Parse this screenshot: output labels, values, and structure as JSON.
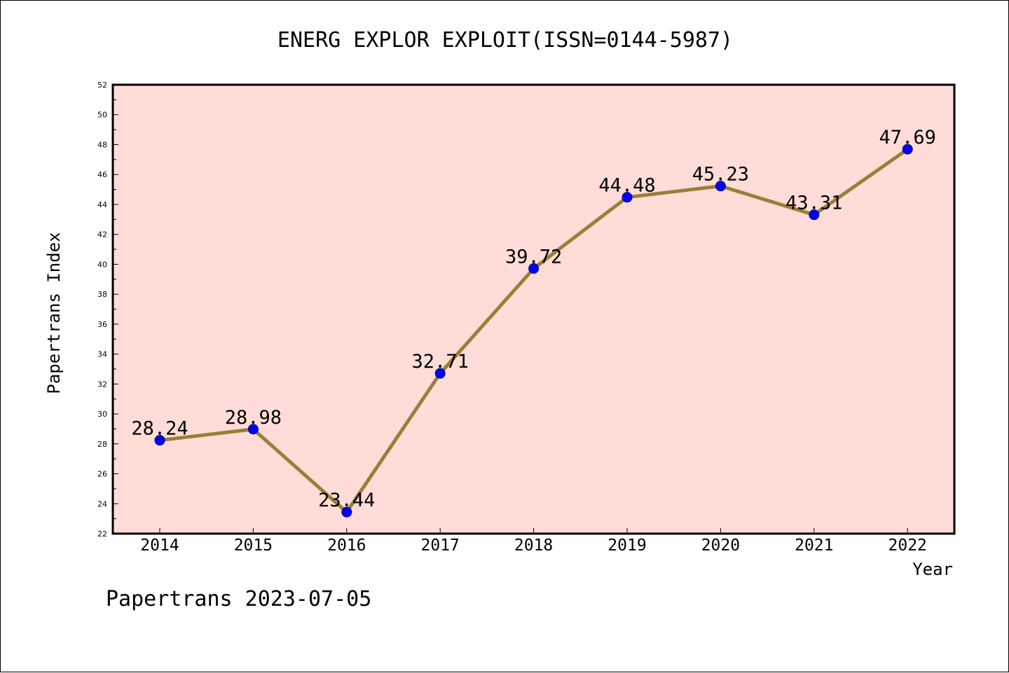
{
  "chart_data": {
    "type": "line",
    "title": "ENERG EXPLOR EXPLOIT(ISSN=0144-5987)",
    "xlabel": "Year",
    "ylabel": "Papertrans Index",
    "x": [
      "2014",
      "2015",
      "2016",
      "2017",
      "2018",
      "2019",
      "2020",
      "2021",
      "2022"
    ],
    "series": [
      {
        "values": [
          28.24,
          28.98,
          23.44,
          32.71,
          39.72,
          44.48,
          45.23,
          43.31,
          47.69
        ],
        "labels": [
          "28.24",
          "28.98",
          "23.44",
          "32.71",
          "39.72",
          "44.48",
          "45.23",
          "43.31",
          "47.69"
        ]
      }
    ],
    "ylim": [
      22,
      52
    ],
    "yticks": [
      22,
      24,
      26,
      28,
      30,
      32,
      34,
      36,
      38,
      40,
      42,
      44,
      46,
      48,
      50,
      52
    ],
    "grid": false,
    "colors": {
      "plot_background": "#ffdcd8",
      "line": "#9a7f38",
      "marker": "#0000ff"
    }
  },
  "footer": {
    "text": "Papertrans 2023-07-05"
  }
}
